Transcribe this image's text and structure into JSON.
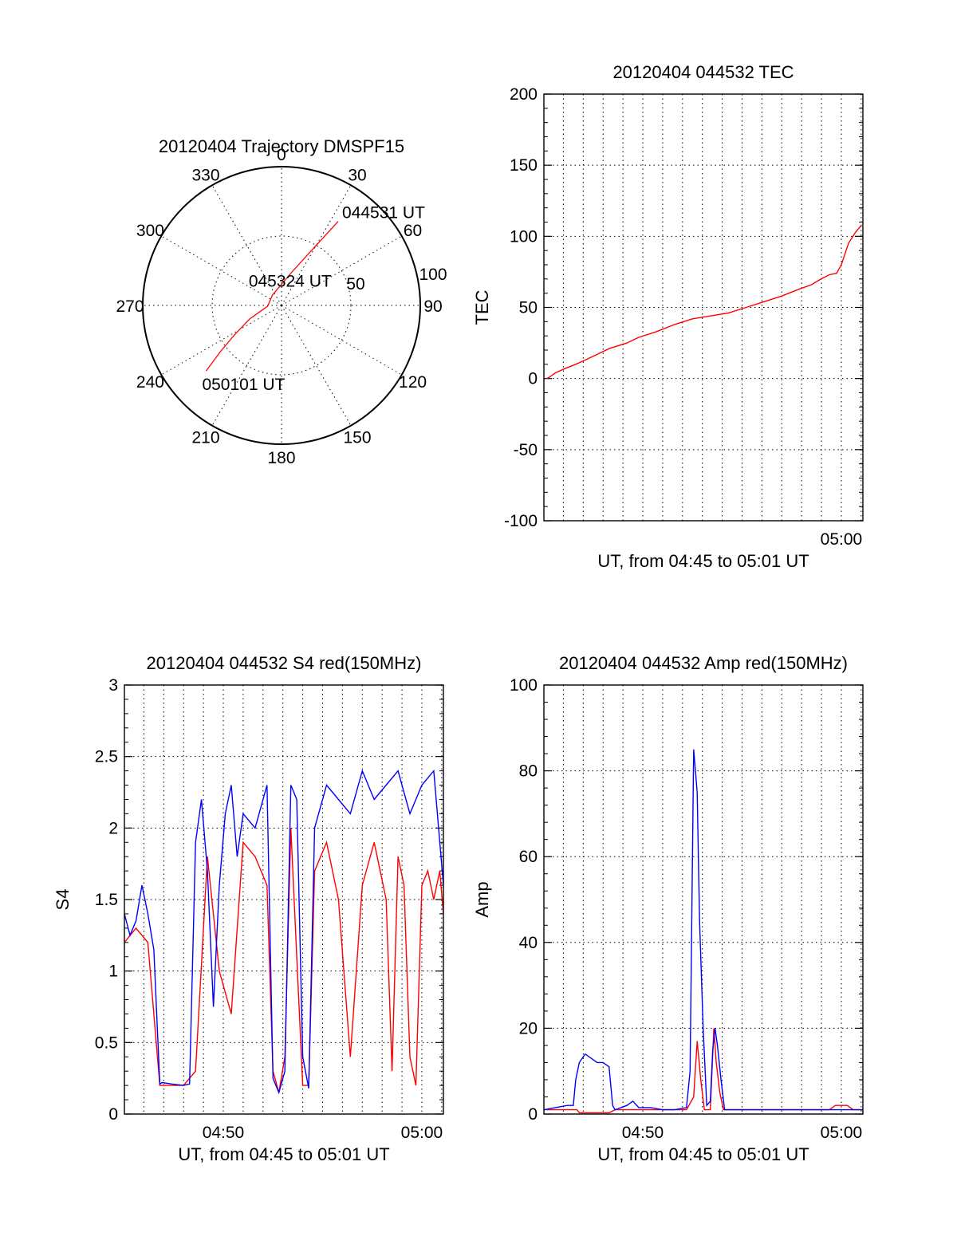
{
  "colors": {
    "red_series": "#ff0000",
    "blue_series": "#0000ff",
    "axes": "#000000"
  },
  "chart_data": [
    {
      "type": "polar",
      "title": "20120404 Trajectory DMSPF15",
      "angle_labels": [
        "0",
        "30",
        "60",
        "90",
        "120",
        "150",
        "180",
        "210",
        "240",
        "270",
        "300",
        "330"
      ],
      "angle_values": [
        0,
        30,
        60,
        90,
        120,
        150,
        180,
        210,
        240,
        270,
        300,
        330
      ],
      "radial_tick_labels": [
        "50",
        "100"
      ],
      "radial_values": [
        50,
        100
      ],
      "radius_max": 100,
      "series": [
        {
          "color": "#ff0000",
          "points": [
            {
              "azimuth": 34,
              "zenith": 73
            },
            {
              "azimuth": 30,
              "zenith": 50
            },
            {
              "azimuth": 18,
              "zenith": 26
            },
            {
              "azimuth": -40,
              "zenith": 10
            },
            {
              "azimuth": -93,
              "zenith": 10
            },
            {
              "azimuth": -113,
              "zenith": 25
            },
            {
              "azimuth": -122,
              "zenith": 40
            },
            {
              "azimuth": -127,
              "zenith": 55
            },
            {
              "azimuth": -131,
              "zenith": 72
            }
          ]
        }
      ],
      "annotations": [
        {
          "text": "044531 UT",
          "azimuth": 34,
          "zenith": 73
        },
        {
          "text": "045324 UT",
          "azimuth": -40,
          "zenith": 10
        },
        {
          "text": "050101 UT",
          "azimuth": -131,
          "zenith": 72
        }
      ]
    },
    {
      "type": "line",
      "title": "20120404 044532 TEC",
      "xlabel": "UT, from 04:45 to 05:01 UT",
      "ylabel": "TEC",
      "xlim": [
        4.7503,
        5.0181
      ],
      "ylim": [
        -100,
        200
      ],
      "yticks": [
        -100,
        -50,
        0,
        50,
        100,
        150,
        200
      ],
      "ytick_labels": [
        "-100",
        "-50",
        "0",
        "50",
        "100",
        "150",
        "200"
      ],
      "xticks": [
        5.0
      ],
      "xtick_labels": [
        "05:00"
      ],
      "grid": true,
      "series": [
        {
          "color": "#ff0000",
          "x": [
            4.7525,
            4.755,
            4.76,
            4.768,
            4.777,
            4.785,
            4.795,
            4.805,
            4.82,
            4.83,
            4.845,
            4.86,
            4.875,
            4.89,
            4.905,
            4.92,
            4.935,
            4.95,
            4.965,
            4.975,
            4.983,
            4.99,
            4.996,
            5.0,
            5.006,
            5.012,
            5.017
          ],
          "y": [
            0,
            1,
            4,
            7,
            10,
            13,
            17,
            21,
            25,
            29,
            33,
            38,
            42,
            44,
            46,
            50,
            54,
            58,
            63,
            66,
            70,
            73,
            74,
            80,
            95,
            103,
            108
          ]
        }
      ]
    },
    {
      "type": "line",
      "title": "20120404 044532 S4 red(150MHz)",
      "xlabel": "UT, from 04:45 to 05:01 UT",
      "ylabel": "S4",
      "xlim": [
        4.7503,
        5.0181
      ],
      "ylim": [
        0,
        3
      ],
      "yticks": [
        0,
        0.5,
        1,
        1.5,
        2,
        2.5,
        3
      ],
      "ytick_labels": [
        "0",
        "0.5",
        "1",
        "1.5",
        "2",
        "2.5",
        "3"
      ],
      "xticks": [
        4.8333,
        5.0
      ],
      "xtick_labels": [
        "04:50",
        "05:00"
      ],
      "grid": true,
      "series": [
        {
          "color": "#ff0000",
          "x": [
            4.7503,
            4.76,
            4.77,
            4.78,
            4.79,
            4.8,
            4.81,
            4.82,
            4.83,
            4.84,
            4.85,
            4.86,
            4.87,
            4.875,
            4.88,
            4.885,
            4.89,
            4.895,
            4.9,
            4.905,
            4.91,
            4.92,
            4.93,
            4.94,
            4.95,
            4.96,
            4.97,
            4.975,
            4.98,
            4.985,
            4.99,
            4.995,
            5.0,
            5.005,
            5.01,
            5.015,
            5.0181
          ],
          "y": [
            1.2,
            1.3,
            1.2,
            0.2,
            0.2,
            0.2,
            0.3,
            1.8,
            1.0,
            0.7,
            1.9,
            1.8,
            1.6,
            0.3,
            0.15,
            0.4,
            2.0,
            1.1,
            0.2,
            0.2,
            1.7,
            1.9,
            1.5,
            0.4,
            1.6,
            1.9,
            1.5,
            0.3,
            1.8,
            1.6,
            0.4,
            0.2,
            1.6,
            1.7,
            1.5,
            1.7,
            1.4
          ]
        },
        {
          "color": "#0000ff",
          "x": [
            4.7503,
            4.755,
            4.76,
            4.765,
            4.77,
            4.775,
            4.78,
            4.782,
            4.79,
            4.8,
            4.805,
            4.81,
            4.815,
            4.82,
            4.825,
            4.83,
            4.835,
            4.84,
            4.845,
            4.85,
            4.86,
            4.87,
            4.875,
            4.88,
            4.885,
            4.89,
            4.895,
            4.9,
            4.905,
            4.91,
            4.92,
            4.93,
            4.94,
            4.95,
            4.96,
            4.97,
            4.98,
            4.99,
            5.0,
            5.01,
            5.0181
          ],
          "y": [
            1.4,
            1.25,
            1.35,
            1.6,
            1.4,
            1.15,
            0.21,
            0.22,
            0.21,
            0.2,
            0.21,
            1.9,
            2.2,
            1.7,
            0.75,
            1.6,
            2.1,
            2.3,
            1.8,
            2.1,
            2.0,
            2.3,
            0.25,
            0.15,
            0.3,
            2.3,
            2.2,
            0.4,
            0.18,
            2.0,
            2.3,
            2.2,
            2.1,
            2.4,
            2.2,
            2.3,
            2.4,
            2.1,
            2.3,
            2.4,
            1.6
          ]
        }
      ]
    },
    {
      "type": "line",
      "title": "20120404 044532 Amp red(150MHz)",
      "xlabel": "UT, from 04:45 to 05:01 UT",
      "ylabel": "Amp",
      "xlim": [
        4.7503,
        5.0181
      ],
      "ylim": [
        0,
        100
      ],
      "yticks": [
        0,
        20,
        40,
        60,
        80,
        100
      ],
      "ytick_labels": [
        "0",
        "20",
        "40",
        "60",
        "80",
        "100"
      ],
      "xticks": [
        4.8333,
        5.0
      ],
      "xtick_labels": [
        "04:50",
        "05:00"
      ],
      "grid": true,
      "series": [
        {
          "color": "#ff0000",
          "x": [
            4.7503,
            4.778,
            4.78,
            4.805,
            4.81,
            4.87,
            4.876,
            4.879,
            4.882,
            4.885,
            4.89,
            4.893,
            4.895,
            4.898,
            4.901,
            4.91,
            4.99,
            4.995,
            5.005,
            5.01,
            5.0181
          ],
          "y": [
            1,
            1,
            0.3,
            0.3,
            1,
            1,
            4,
            17,
            8,
            1,
            1,
            20,
            12,
            5,
            1,
            1,
            1,
            2,
            2,
            1,
            1
          ]
        },
        {
          "color": "#0000ff",
          "x": [
            4.7503,
            4.77,
            4.775,
            4.777,
            4.78,
            4.785,
            4.79,
            4.795,
            4.8,
            4.805,
            4.808,
            4.81,
            4.82,
            4.825,
            4.83,
            4.84,
            4.85,
            4.86,
            4.87,
            4.873,
            4.876,
            4.879,
            4.881,
            4.884,
            4.887,
            4.89,
            4.892,
            4.894,
            4.896,
            4.899,
            4.902,
            4.91,
            4.93,
            4.95,
            4.97,
            4.99,
            5.01,
            5.0181
          ],
          "y": [
            1,
            2,
            2,
            8,
            12,
            14,
            13,
            12,
            12,
            11,
            2,
            1,
            2,
            3,
            1.5,
            1.5,
            1,
            1,
            1.5,
            10,
            85,
            75,
            45,
            20,
            2,
            3,
            15,
            20,
            16,
            8,
            1,
            1,
            1,
            1,
            1,
            1,
            1,
            1
          ]
        }
      ]
    }
  ]
}
